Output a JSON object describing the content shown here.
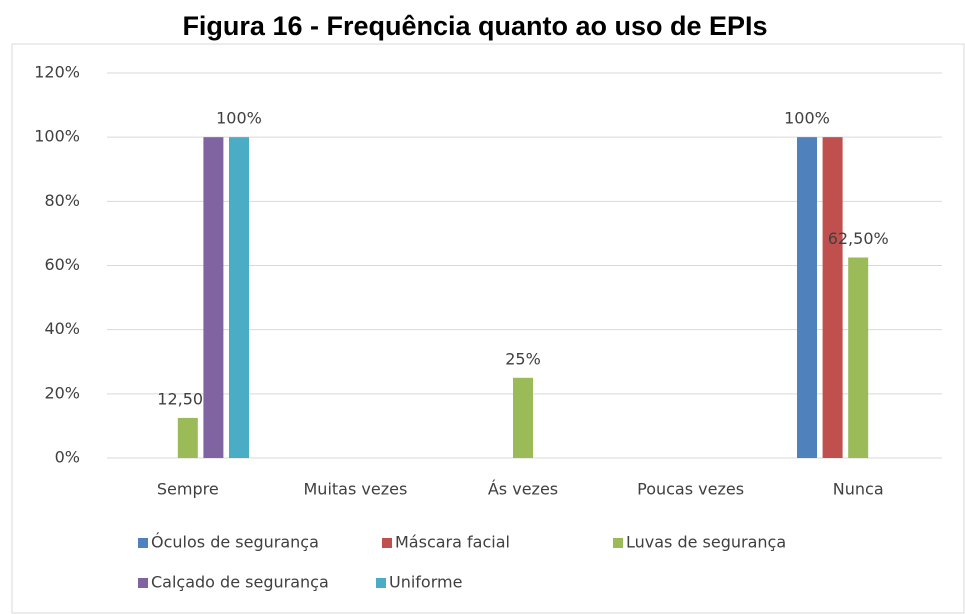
{
  "chart_data": {
    "type": "bar",
    "title": "Figura 16 - Frequência quanto ao uso de EPIs",
    "categories": [
      "Sempre",
      "Muitas vezes",
      "Ás vezes",
      "Poucas vezes",
      "Nunca"
    ],
    "series": [
      {
        "name": "Óculos de segurança",
        "color": "#4f81bd",
        "values": [
          null,
          null,
          null,
          null,
          100
        ],
        "value_labels": [
          null,
          null,
          null,
          null,
          "100%"
        ]
      },
      {
        "name": "Máscara facial",
        "color": "#c0504d",
        "values": [
          null,
          null,
          null,
          null,
          100
        ],
        "value_labels": [
          null,
          null,
          null,
          null,
          null
        ]
      },
      {
        "name": "Luvas de segurança",
        "color": "#9bbb59",
        "values": [
          12.5,
          null,
          25,
          null,
          62.5
        ],
        "value_labels": [
          "12,50%",
          null,
          "25%",
          null,
          "62,50%"
        ]
      },
      {
        "name": "Calçado de segurança",
        "color": "#8064a2",
        "values": [
          100,
          null,
          null,
          null,
          null
        ],
        "value_labels": [
          null,
          null,
          null,
          null,
          null
        ]
      },
      {
        "name": "Uniforme",
        "color": "#4bacc6",
        "values": [
          100,
          null,
          null,
          null,
          null
        ],
        "value_labels": [
          "100%",
          null,
          null,
          null,
          null
        ]
      }
    ],
    "ylim": [
      0,
      120
    ],
    "yticks": [
      {
        "value": 0,
        "label": "0%"
      },
      {
        "value": 20,
        "label": "20%"
      },
      {
        "value": 40,
        "label": "40%"
      },
      {
        "value": 60,
        "label": "60%"
      },
      {
        "value": 80,
        "label": "80%"
      },
      {
        "value": 100,
        "label": "100%"
      },
      {
        "value": 120,
        "label": "120%"
      }
    ],
    "grid": true
  }
}
